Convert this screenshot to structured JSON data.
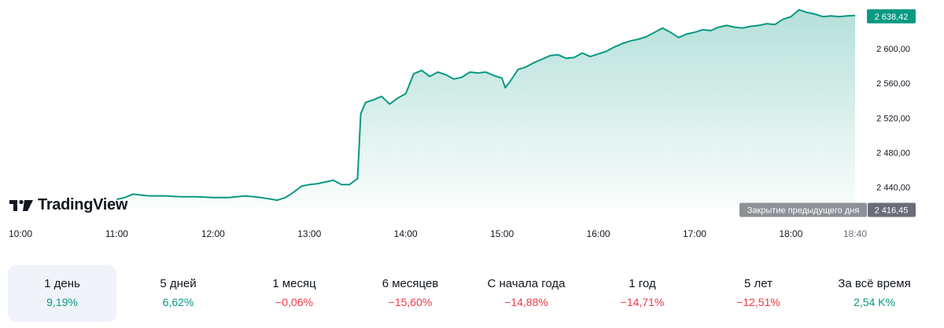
{
  "brand": {
    "name": "TradingView"
  },
  "chart_data": {
    "type": "area",
    "x_ticks": [
      "10:00",
      "11:00",
      "12:00",
      "13:00",
      "14:00",
      "15:00",
      "16:00",
      "17:00",
      "18:00",
      "18:40"
    ],
    "y_ticks": [
      "2 440,00",
      "2 480,00",
      "2 520,00",
      "2 560,00",
      "2 600,00"
    ],
    "ylim": [
      2416,
      2650
    ],
    "time_range": [
      "10:00",
      "18:40"
    ],
    "series": [
      {
        "color": "#089981",
        "points": [
          [
            "11:00",
            2426
          ],
          [
            "11:05",
            2428
          ],
          [
            "11:10",
            2432
          ],
          [
            "11:15",
            2431
          ],
          [
            "11:20",
            2430
          ],
          [
            "11:30",
            2430
          ],
          [
            "11:40",
            2429
          ],
          [
            "11:50",
            2429
          ],
          [
            "12:00",
            2428
          ],
          [
            "12:10",
            2428
          ],
          [
            "12:20",
            2430
          ],
          [
            "12:30",
            2428
          ],
          [
            "12:40",
            2425
          ],
          [
            "12:45",
            2428
          ],
          [
            "12:50",
            2434
          ],
          [
            "12:55",
            2441
          ],
          [
            "13:00",
            2443
          ],
          [
            "13:05",
            2444
          ],
          [
            "13:10",
            2446
          ],
          [
            "13:15",
            2448
          ],
          [
            "13:20",
            2443
          ],
          [
            "13:25",
            2443
          ],
          [
            "13:30",
            2450
          ],
          [
            "13:32",
            2525
          ],
          [
            "13:35",
            2538
          ],
          [
            "13:40",
            2541
          ],
          [
            "13:45",
            2545
          ],
          [
            "13:50",
            2536
          ],
          [
            "13:55",
            2543
          ],
          [
            "14:00",
            2548
          ],
          [
            "14:05",
            2571
          ],
          [
            "14:10",
            2575
          ],
          [
            "14:15",
            2568
          ],
          [
            "14:20",
            2573
          ],
          [
            "14:25",
            2570
          ],
          [
            "14:30",
            2565
          ],
          [
            "14:35",
            2567
          ],
          [
            "14:40",
            2573
          ],
          [
            "14:45",
            2572
          ],
          [
            "14:50",
            2573
          ],
          [
            "14:55",
            2569
          ],
          [
            "15:00",
            2566
          ],
          [
            "15:02",
            2555
          ],
          [
            "15:05",
            2562
          ],
          [
            "15:10",
            2576
          ],
          [
            "15:15",
            2579
          ],
          [
            "15:20",
            2584
          ],
          [
            "15:25",
            2588
          ],
          [
            "15:30",
            2592
          ],
          [
            "15:35",
            2593
          ],
          [
            "15:40",
            2589
          ],
          [
            "15:45",
            2590
          ],
          [
            "15:50",
            2595
          ],
          [
            "15:55",
            2591
          ],
          [
            "16:00",
            2594
          ],
          [
            "16:05",
            2597
          ],
          [
            "16:10",
            2602
          ],
          [
            "16:15",
            2606
          ],
          [
            "16:20",
            2609
          ],
          [
            "16:25",
            2611
          ],
          [
            "16:30",
            2614
          ],
          [
            "16:35",
            2619
          ],
          [
            "16:40",
            2624
          ],
          [
            "16:45",
            2619
          ],
          [
            "16:50",
            2613
          ],
          [
            "16:55",
            2617
          ],
          [
            "17:00",
            2619
          ],
          [
            "17:05",
            2622
          ],
          [
            "17:10",
            2621
          ],
          [
            "17:15",
            2625
          ],
          [
            "17:20",
            2627
          ],
          [
            "17:25",
            2625
          ],
          [
            "17:30",
            2624
          ],
          [
            "17:35",
            2626
          ],
          [
            "17:40",
            2627
          ],
          [
            "17:45",
            2629
          ],
          [
            "17:50",
            2628
          ],
          [
            "17:55",
            2634
          ],
          [
            "18:00",
            2637
          ],
          [
            "18:05",
            2645
          ],
          [
            "18:10",
            2642
          ],
          [
            "18:15",
            2640
          ],
          [
            "18:20",
            2637
          ],
          [
            "18:25",
            2638
          ],
          [
            "18:30",
            2637
          ],
          [
            "18:35",
            2638
          ],
          [
            "18:40",
            2638.42
          ]
        ]
      }
    ],
    "last_value": {
      "label": "2 638,42",
      "value": 2638.42
    },
    "prev_close": {
      "name": "Закрытие предыдущего дня",
      "label": "2 416,45",
      "value": 2416.45
    },
    "grid": false
  },
  "periods": [
    {
      "label": "1 день",
      "change": "9,19%",
      "direction": "up",
      "active": true
    },
    {
      "label": "5 дней",
      "change": "6,62%",
      "direction": "up",
      "active": false
    },
    {
      "label": "1 месяц",
      "change": "−0,06%",
      "direction": "down",
      "active": false
    },
    {
      "label": "6 месяцев",
      "change": "−15,60%",
      "direction": "down",
      "active": false
    },
    {
      "label": "С начала года",
      "change": "−14,88%",
      "direction": "down",
      "active": false
    },
    {
      "label": "1 год",
      "change": "−14,71%",
      "direction": "down",
      "active": false
    },
    {
      "label": "5 лет",
      "change": "−12,51%",
      "direction": "down",
      "active": false
    },
    {
      "label": "За всё время",
      "change": "2,54 K%",
      "direction": "up",
      "active": false
    }
  ]
}
